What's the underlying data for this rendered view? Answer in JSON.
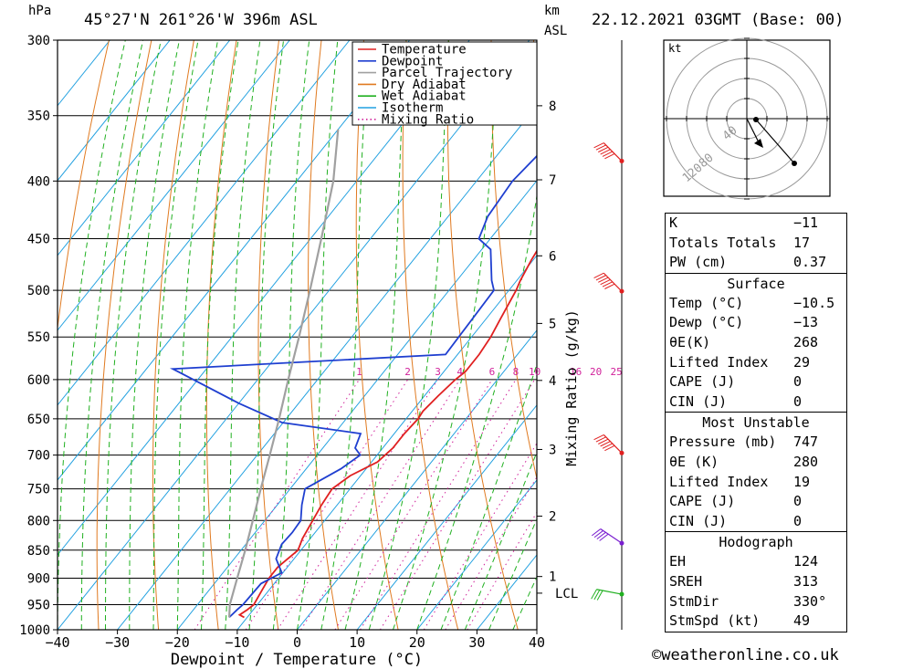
{
  "header": {
    "location": "45°27'N  261°26'W  396m  ASL",
    "datetime": "22.12.2021  03GMT  (Base: 00)",
    "pressure_unit": "hPa",
    "height_unit_1": "km",
    "height_unit_2": "ASL"
  },
  "colors": {
    "temperature": "#e02020",
    "dewpoint": "#1f3fd0",
    "parcel": "#a0a0a0",
    "dry_adiabat": "#e07a20",
    "wet_adiabat": "#20b020",
    "isotherm": "#20a0e0",
    "mixing_ratio": "#d0209a"
  },
  "chart_data": {
    "type": "line",
    "xlabel": "Dewpoint / Temperature (°C)",
    "ylabel": "",
    "x_ticks": [
      -40,
      -30,
      -20,
      -10,
      0,
      10,
      20,
      30,
      40
    ],
    "pressure_levels": [
      300,
      350,
      400,
      450,
      500,
      550,
      600,
      650,
      700,
      750,
      800,
      850,
      900,
      950,
      1000
    ],
    "height_ticks": [
      {
        "label": "8",
        "p": 343
      },
      {
        "label": "7",
        "p": 399
      },
      {
        "label": "6",
        "p": 466
      },
      {
        "label": "5",
        "p": 535
      },
      {
        "label": "4",
        "p": 601
      },
      {
        "label": "3",
        "p": 692
      },
      {
        "label": "2",
        "p": 793
      },
      {
        "label": "1",
        "p": 897
      },
      {
        "label": "LCL",
        "p": 928
      }
    ],
    "secondary_ylabel": "Mixing Ratio (g/kg)",
    "mixing_ratio_labels": [
      "1",
      "2",
      "3",
      "4",
      "6",
      "8",
      "10",
      "16",
      "20",
      "25"
    ],
    "legend": [
      "Temperature",
      "Dewpoint",
      "Parcel Trajectory",
      "Dry Adiabat",
      "Wet Adiabat",
      "Isotherm",
      "Mixing Ratio"
    ],
    "series": [
      {
        "name": "Temperature",
        "points": [
          [
            -16.0,
            300
          ],
          [
            -16.5,
            320
          ],
          [
            -17.0,
            340
          ],
          [
            -16.3,
            360
          ],
          [
            -15.4,
            380
          ],
          [
            -14.2,
            400
          ],
          [
            -13.0,
            420
          ],
          [
            -11.7,
            440
          ],
          [
            -11.0,
            450
          ],
          [
            -10.3,
            470
          ],
          [
            -9.4,
            490
          ],
          [
            -8.8,
            500
          ],
          [
            -7.6,
            530
          ],
          [
            -6.8,
            550
          ],
          [
            -6.4,
            570
          ],
          [
            -6.4,
            590
          ],
          [
            -7.0,
            600
          ],
          [
            -7.7,
            620
          ],
          [
            -8.2,
            640
          ],
          [
            -8.0,
            650
          ],
          [
            -8.3,
            670
          ],
          [
            -8.3,
            690
          ],
          [
            -9.0,
            710
          ],
          [
            -11.7,
            730
          ],
          [
            -13.0,
            750
          ],
          [
            -12.6,
            775
          ],
          [
            -12.0,
            800
          ],
          [
            -11.3,
            830
          ],
          [
            -10.5,
            850
          ],
          [
            -11.6,
            880
          ],
          [
            -11.6,
            900
          ],
          [
            -11.1,
            925
          ],
          [
            -10.6,
            950
          ],
          [
            -11.0,
            960
          ],
          [
            -11.6,
            970
          ],
          [
            -10.5,
            975
          ]
        ]
      },
      {
        "name": "Dewpoint",
        "points": [
          [
            -26.0,
            300
          ],
          [
            -24.6,
            320
          ],
          [
            -24.0,
            335
          ],
          [
            -22.0,
            355
          ],
          [
            -22.9,
            370
          ],
          [
            -24.0,
            400
          ],
          [
            -23.4,
            430
          ],
          [
            -21.9,
            450
          ],
          [
            -18.5,
            460
          ],
          [
            -14.2,
            490
          ],
          [
            -12.5,
            500
          ],
          [
            -12.0,
            570
          ],
          [
            -55.6,
            587
          ],
          [
            -39.9,
            630
          ],
          [
            -30.2,
            655
          ],
          [
            -15.6,
            670
          ],
          [
            -14.6,
            690
          ],
          [
            -12.8,
            700
          ],
          [
            -14.2,
            720
          ],
          [
            -17.5,
            750
          ],
          [
            -15.9,
            775
          ],
          [
            -14.0,
            800
          ],
          [
            -13.8,
            820
          ],
          [
            -14.0,
            840
          ],
          [
            -13.0,
            865
          ],
          [
            -10.2,
            890
          ],
          [
            -12.2,
            910
          ],
          [
            -12.4,
            950
          ],
          [
            -12.7,
            960
          ],
          [
            -13.0,
            975
          ]
        ]
      },
      {
        "name": "Parcel Trajectory",
        "points": [
          [
            -13.0,
            975
          ],
          [
            -14.6,
            950
          ],
          [
            -16.9,
            900
          ],
          [
            -19.3,
            850
          ],
          [
            -22.0,
            800
          ],
          [
            -24.9,
            750
          ],
          [
            -27.9,
            700
          ],
          [
            -31.2,
            650
          ],
          [
            -34.9,
            600
          ],
          [
            -38.8,
            550
          ],
          [
            -43.2,
            500
          ],
          [
            -48.2,
            450
          ],
          [
            -53.9,
            400
          ],
          [
            -60.0,
            360
          ]
        ]
      }
    ],
    "wind_barbs": [
      {
        "p": 384,
        "kt": 60,
        "color": "#e02020"
      },
      {
        "p": 501,
        "kt": 60,
        "color": "#e02020"
      },
      {
        "p": 697,
        "kt": 55,
        "color": "#e02020"
      },
      {
        "p": 838,
        "kt": 40,
        "color": "#7a1fd0"
      },
      {
        "p": 930,
        "kt": 25,
        "color": "#20b020"
      }
    ]
  },
  "hodograph": {
    "unit": "kt",
    "ring_labels": [
      "120",
      "80",
      "40"
    ]
  },
  "indices": {
    "rows": [
      {
        "label": "K",
        "value": "-11"
      },
      {
        "label": "Totals Totals",
        "value": "17"
      },
      {
        "label": "PW (cm)",
        "value": "0.37"
      }
    ]
  },
  "surface": {
    "title": "Surface",
    "rows": [
      {
        "label": "Temp (°C)",
        "value": "-10.5"
      },
      {
        "label": "Dewp (°C)",
        "value": "-13"
      },
      {
        "label": "θE(K)",
        "value": "268"
      },
      {
        "label": "Lifted Index",
        "value": "29"
      },
      {
        "label": "CAPE (J)",
        "value": "0"
      },
      {
        "label": "CIN (J)",
        "value": "0"
      }
    ]
  },
  "most_unstable": {
    "title": "Most Unstable",
    "rows": [
      {
        "label": "Pressure (mb)",
        "value": "747"
      },
      {
        "label": "θE (K)",
        "value": "280"
      },
      {
        "label": "Lifted Index",
        "value": "19"
      },
      {
        "label": "CAPE (J)",
        "value": "0"
      },
      {
        "label": "CIN (J)",
        "value": "0"
      }
    ]
  },
  "hodograph_stats": {
    "title": "Hodograph",
    "rows": [
      {
        "label": "EH",
        "value": "124"
      },
      {
        "label": "SREH",
        "value": "313"
      },
      {
        "label": "StmDir",
        "value": "330°"
      },
      {
        "label": "StmSpd (kt)",
        "value": "49"
      }
    ]
  },
  "footer": {
    "copyright": "©weatheronline.co.uk"
  }
}
